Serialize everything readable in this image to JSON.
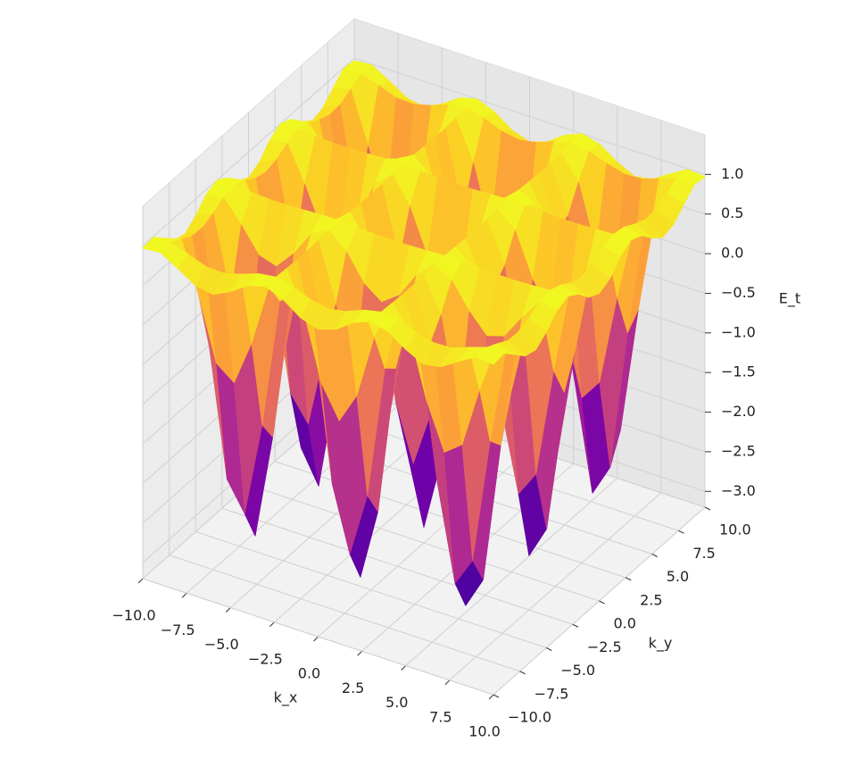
{
  "chart_data": {
    "type": "surface",
    "x_label": "k_x",
    "y_label": "k_y",
    "z_label": "E_t",
    "colormap": "plasma",
    "x": [
      -10,
      -9,
      -8,
      -7,
      -6,
      -5,
      -4,
      -3,
      -2,
      -1,
      0,
      1,
      2,
      3,
      4,
      5,
      6,
      7,
      8,
      9,
      10
    ],
    "y": [
      -10,
      -9,
      -8,
      -7,
      -6,
      -5,
      -4,
      -3,
      -2,
      -1,
      0,
      1,
      2,
      3,
      4,
      5,
      6,
      7,
      8,
      9,
      10
    ],
    "z": [
      [
        0.97,
        0.99,
        0.86,
        0.72,
        0.68,
        0.79,
        0.94,
        1,
        0.91,
        0.75,
        0.68,
        0.75,
        0.91,
        1,
        0.94,
        0.79,
        0.68,
        0.72,
        0.86,
        0.99,
        0.97
      ],
      [
        0.99,
        0.99,
        0.92,
        0.84,
        0.83,
        0.89,
        0.97,
        1,
        0.95,
        0.86,
        0.82,
        0.86,
        0.95,
        1,
        0.97,
        0.89,
        0.83,
        0.84,
        0.92,
        0.99,
        0.99
      ],
      [
        0.86,
        0.92,
        0.27,
        -0.5,
        -0.67,
        -0.1,
        0.7,
        0.99,
        0.5,
        -0.32,
        -0.71,
        -0.32,
        0.5,
        0.99,
        0.7,
        -0.1,
        -0.67,
        -0.5,
        0.27,
        0.92,
        0.86
      ],
      [
        0.72,
        0.84,
        -0.5,
        -2.08,
        -2.44,
        -1.25,
        0.39,
        0.98,
        -0.02,
        -1.7,
        -2.51,
        -1.7,
        -0.02,
        0.98,
        0.39,
        -1.25,
        -2.44,
        -2.08,
        -0.5,
        0.84,
        0.72
      ],
      [
        0.68,
        0.83,
        -0.67,
        -2.44,
        -2.84,
        -1.52,
        0.32,
        0.98,
        -0.14,
        -2.02,
        -2.92,
        -2.02,
        -0.14,
        0.98,
        0.32,
        -1.52,
        -2.84,
        -2.44,
        -0.67,
        0.83,
        0.68
      ],
      [
        0.79,
        0.89,
        -0.1,
        -1.25,
        -1.52,
        -0.65,
        0.56,
        0.99,
        0.25,
        -0.98,
        -1.57,
        -0.98,
        0.25,
        0.99,
        0.56,
        -0.65,
        -1.52,
        -1.25,
        -0.1,
        0.89,
        0.79
      ],
      [
        0.94,
        0.97,
        0.7,
        0.39,
        0.32,
        0.56,
        0.88,
        1,
        0.8,
        0.47,
        0.31,
        0.47,
        0.8,
        1,
        0.88,
        0.56,
        0.32,
        0.39,
        0.7,
        0.97,
        0.94
      ],
      [
        1,
        1,
        0.99,
        0.98,
        0.98,
        0.99,
        1,
        1,
        0.99,
        0.98,
        0.98,
        0.98,
        0.99,
        1,
        1,
        0.99,
        0.98,
        0.98,
        0.99,
        1,
        1
      ],
      [
        0.91,
        0.95,
        0.5,
        -0.02,
        -0.14,
        0.25,
        0.8,
        0.99,
        0.66,
        0.1,
        -0.17,
        0.1,
        0.66,
        0.99,
        0.8,
        0.25,
        -0.14,
        -0.02,
        0.5,
        0.95,
        0.91
      ],
      [
        0.75,
        0.86,
        -0.32,
        -1.7,
        -2.02,
        -0.98,
        0.47,
        0.98,
        0.1,
        -1.37,
        -2.08,
        -1.37,
        0.1,
        0.98,
        0.47,
        -0.98,
        -2.02,
        -1.7,
        -0.32,
        0.86,
        0.75
      ],
      [
        0.68,
        0.82,
        -0.71,
        -2.51,
        -2.92,
        -1.57,
        0.31,
        0.98,
        -0.17,
        -2.08,
        -3,
        -2.08,
        -0.17,
        0.98,
        0.31,
        -1.57,
        -2.92,
        -2.51,
        -0.71,
        0.82,
        0.68
      ],
      [
        0.75,
        0.86,
        -0.32,
        -1.7,
        -2.02,
        -0.98,
        0.47,
        0.98,
        0.1,
        -1.37,
        -2.08,
        -1.37,
        0.1,
        0.98,
        0.47,
        -0.98,
        -2.02,
        -1.7,
        -0.32,
        0.86,
        0.75
      ],
      [
        0.91,
        0.95,
        0.5,
        -0.02,
        -0.14,
        0.25,
        0.8,
        0.99,
        0.66,
        0.1,
        -0.17,
        0.1,
        0.66,
        0.99,
        0.8,
        0.25,
        -0.14,
        -0.02,
        0.5,
        0.95,
        0.91
      ],
      [
        1,
        1,
        0.99,
        0.98,
        0.98,
        0.99,
        1,
        1,
        0.99,
        0.98,
        0.98,
        0.98,
        0.99,
        1,
        1,
        0.99,
        0.98,
        0.98,
        0.99,
        1,
        1
      ],
      [
        0.94,
        0.97,
        0.7,
        0.39,
        0.32,
        0.56,
        0.88,
        1,
        0.8,
        0.47,
        0.31,
        0.47,
        0.8,
        1,
        0.88,
        0.56,
        0.32,
        0.39,
        0.7,
        0.97,
        0.94
      ],
      [
        0.79,
        0.89,
        -0.1,
        -1.25,
        -1.52,
        -0.65,
        0.56,
        0.99,
        0.25,
        -0.98,
        -1.57,
        -0.98,
        0.25,
        0.99,
        0.56,
        -0.65,
        -1.52,
        -1.25,
        -0.1,
        0.89,
        0.79
      ],
      [
        0.68,
        0.83,
        -0.67,
        -2.44,
        -2.84,
        -1.52,
        0.32,
        0.98,
        -0.14,
        -2.02,
        -2.92,
        -2.02,
        -0.14,
        0.98,
        0.32,
        -1.52,
        -2.84,
        -2.44,
        -0.67,
        0.83,
        0.68
      ],
      [
        0.72,
        0.84,
        -0.5,
        -2.08,
        -2.44,
        -1.25,
        0.39,
        0.98,
        -0.02,
        -1.7,
        -2.51,
        -1.7,
        -0.02,
        0.98,
        0.39,
        -1.25,
        -2.44,
        -2.08,
        -0.5,
        0.84,
        0.72
      ],
      [
        0.86,
        0.92,
        0.27,
        -0.5,
        -0.67,
        -0.1,
        0.7,
        0.99,
        0.5,
        -0.32,
        -0.71,
        -0.32,
        0.5,
        0.99,
        0.7,
        -0.1,
        -0.67,
        -0.5,
        0.27,
        0.92,
        0.86
      ],
      [
        0.99,
        0.99,
        0.92,
        0.84,
        0.83,
        0.89,
        0.97,
        1,
        0.95,
        0.86,
        0.82,
        0.86,
        0.95,
        1,
        0.97,
        0.89,
        0.83,
        0.84,
        0.92,
        0.99,
        0.99
      ],
      [
        0.97,
        0.99,
        0.86,
        0.72,
        0.68,
        0.79,
        0.94,
        1,
        0.91,
        0.75,
        0.68,
        0.75,
        0.91,
        1,
        0.94,
        0.79,
        0.68,
        0.72,
        0.86,
        0.99,
        0.97
      ]
    ],
    "xlim": [
      -10,
      10
    ],
    "ylim": [
      -10,
      10
    ],
    "zlim": [
      -3.2,
      1.5
    ],
    "xticks": [
      {
        "value": -10,
        "label": "−10.0"
      },
      {
        "value": -7.5,
        "label": "−7.5"
      },
      {
        "value": -5,
        "label": "−5.0"
      },
      {
        "value": -2.5,
        "label": "−2.5"
      },
      {
        "value": 0,
        "label": "0.0"
      },
      {
        "value": 2.5,
        "label": "2.5"
      },
      {
        "value": 5,
        "label": "5.0"
      },
      {
        "value": 7.5,
        "label": "7.5"
      },
      {
        "value": 10,
        "label": "10.0"
      }
    ],
    "yticks": [
      {
        "value": -10,
        "label": "−10.0"
      },
      {
        "value": -7.5,
        "label": "−7.5"
      },
      {
        "value": -5,
        "label": "−5.0"
      },
      {
        "value": -2.5,
        "label": "−2.5"
      },
      {
        "value": 0,
        "label": "0.0"
      },
      {
        "value": 2.5,
        "label": "2.5"
      },
      {
        "value": 5,
        "label": "5.0"
      },
      {
        "value": 7.5,
        "label": "7.5"
      },
      {
        "value": 10,
        "label": "10.0"
      }
    ],
    "zticks": [
      {
        "value": -3,
        "label": "−3.0"
      },
      {
        "value": -2.5,
        "label": "−2.5"
      },
      {
        "value": -2,
        "label": "−2.0"
      },
      {
        "value": -1.5,
        "label": "−1.5"
      },
      {
        "value": -1,
        "label": "−1.0"
      },
      {
        "value": -0.5,
        "label": "−0.5"
      },
      {
        "value": 0,
        "label": "0.0"
      },
      {
        "value": 0.5,
        "label": "0.5"
      },
      {
        "value": 1,
        "label": "1.0"
      }
    ],
    "grid": true
  }
}
